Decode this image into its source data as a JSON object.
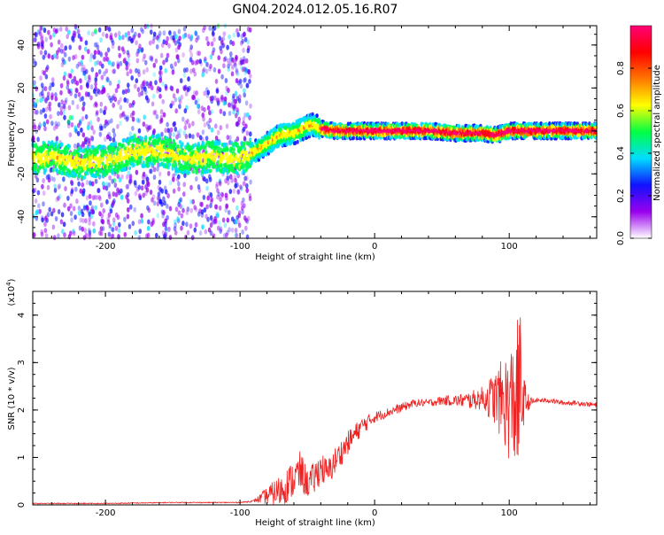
{
  "title": "GN04.2024.012.05.16.R07",
  "colors": {
    "snr_line": "#ee2222",
    "frame": "#000000"
  },
  "chart_data": [
    {
      "type": "heatmap",
      "xlabel": "Height of straight line (km)",
      "ylabel": "Frequency (Hz)",
      "xlim": [
        -254,
        165
      ],
      "ylim": [
        -50,
        49
      ],
      "x_ticks": [
        -200,
        -100,
        0,
        100
      ],
      "y_ticks": [
        -40,
        -20,
        0,
        20,
        40
      ],
      "colorbar": {
        "label": "Normalized spectral amplitude",
        "range": [
          0,
          1
        ],
        "ticks": [
          "0.0",
          "0.2",
          "0.4",
          "0.6",
          "0.8"
        ],
        "colormap": [
          "#ffffff",
          "#9900ee",
          "#1111ff",
          "#00ddff",
          "#00ff44",
          "#ffff00",
          "#ff7700",
          "#ff0000",
          "#ff0077"
        ]
      },
      "ridge": {
        "description_points_x": [
          -254,
          -240,
          -220,
          -200,
          -180,
          -160,
          -140,
          -120,
          -100,
          -90,
          -80,
          -70,
          -60,
          -50,
          -45,
          -40,
          -30,
          -20,
          0,
          20,
          40,
          60,
          80,
          90,
          100,
          110,
          130,
          150,
          165
        ],
        "description_points_y": [
          -13,
          -12,
          -15,
          -14,
          -10,
          -9,
          -13,
          -12,
          -13,
          -10,
          -6,
          -2,
          -1,
          2,
          3,
          1,
          0,
          0,
          0,
          0,
          0,
          -1,
          -1,
          -2,
          0,
          0,
          0,
          0,
          0
        ]
      }
    },
    {
      "type": "line",
      "xlabel": "Height of straight line (km)",
      "ylabel": "SNR (10 * v/v)",
      "multiplier_label": "(x10",
      "multiplier_exp": "4",
      "multiplier_close": ")",
      "xlim": [
        -254,
        165
      ],
      "ylim": [
        0,
        4.5
      ],
      "x_ticks": [
        -200,
        -100,
        0,
        100
      ],
      "y_ticks": [
        0,
        1,
        2,
        3,
        4
      ],
      "series": [
        {
          "x": [
            -254,
            -200,
            -150,
            -100,
            -90,
            -70,
            -60,
            -55,
            -50,
            -45,
            -40,
            -35,
            -30,
            -20,
            -10,
            0,
            10,
            20,
            30,
            40,
            50,
            60,
            70,
            80,
            90,
            95,
            100,
            105,
            108,
            110,
            115,
            120,
            130,
            140,
            150,
            165
          ],
          "y": [
            0.03,
            0.03,
            0.05,
            0.05,
            0.08,
            0.3,
            0.55,
            0.7,
            0.45,
            0.55,
            0.8,
            0.65,
            0.9,
            1.3,
            1.65,
            1.85,
            1.95,
            2.05,
            2.15,
            2.15,
            2.2,
            2.2,
            2.2,
            2.25,
            2.25,
            2.2,
            2.1,
            2.2,
            2.3,
            2.2,
            2.15,
            2.2,
            2.2,
            2.15,
            2.15,
            2.1
          ],
          "noise": [
            0.01,
            0.01,
            0.01,
            0.01,
            0.02,
            0.35,
            0.4,
            0.45,
            0.3,
            0.35,
            0.35,
            0.3,
            0.3,
            0.25,
            0.2,
            0.12,
            0.1,
            0.1,
            0.08,
            0.08,
            0.1,
            0.12,
            0.18,
            0.25,
            0.6,
            0.9,
            1.2,
            1.5,
            2.0,
            0.6,
            0.12,
            0.05,
            0.05,
            0.05,
            0.05,
            0.05
          ]
        }
      ]
    }
  ]
}
